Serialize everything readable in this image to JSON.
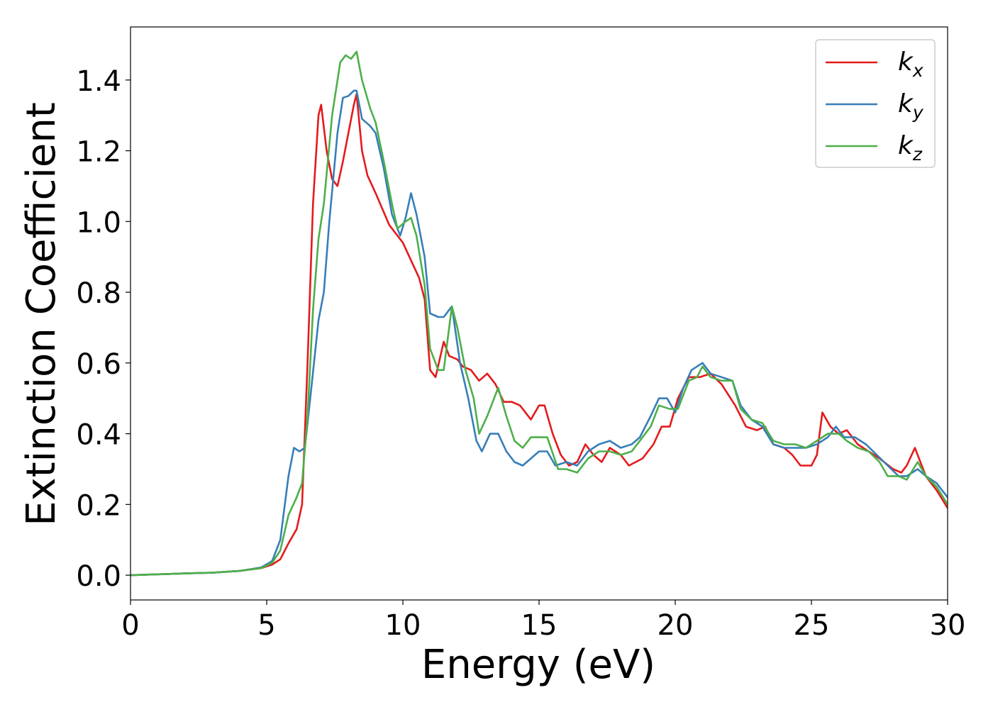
{
  "chart_data": {
    "type": "line",
    "title": "",
    "xlabel": "Energy (eV)",
    "ylabel": "Extinction Coefficient",
    "xlim": [
      0,
      30
    ],
    "ylim": [
      -0.07,
      1.55
    ],
    "xticks": [
      0,
      5,
      10,
      15,
      20,
      25,
      30
    ],
    "xtick_labels": [
      "0",
      "5",
      "10",
      "15",
      "20",
      "25",
      "30"
    ],
    "yticks": [
      0.0,
      0.2,
      0.4,
      0.6,
      0.8,
      1.0,
      1.2,
      1.4
    ],
    "ytick_labels": [
      "0.0",
      "0.2",
      "0.4",
      "0.6",
      "0.8",
      "1.0",
      "1.2",
      "1.4"
    ],
    "grid": false,
    "legend_position": "top-right",
    "series": [
      {
        "name": "k_x",
        "label_base": "k",
        "label_sub": "x",
        "color": "#e41a1c",
        "points": [
          [
            0,
            0
          ],
          [
            2,
            0.005
          ],
          [
            3,
            0.007
          ],
          [
            4,
            0.012
          ],
          [
            4.8,
            0.02
          ],
          [
            5.2,
            0.03
          ],
          [
            5.5,
            0.045
          ],
          [
            5.8,
            0.09
          ],
          [
            6.1,
            0.13
          ],
          [
            6.3,
            0.2
          ],
          [
            6.5,
            0.6
          ],
          [
            6.7,
            1.05
          ],
          [
            6.9,
            1.3
          ],
          [
            7.0,
            1.33
          ],
          [
            7.2,
            1.2
          ],
          [
            7.4,
            1.12
          ],
          [
            7.6,
            1.1
          ],
          [
            7.8,
            1.17
          ],
          [
            8.0,
            1.25
          ],
          [
            8.2,
            1.33
          ],
          [
            8.3,
            1.36
          ],
          [
            8.5,
            1.2
          ],
          [
            8.7,
            1.13
          ],
          [
            9.0,
            1.08
          ],
          [
            9.5,
            0.99
          ],
          [
            10.0,
            0.94
          ],
          [
            10.3,
            0.89
          ],
          [
            10.6,
            0.84
          ],
          [
            10.8,
            0.78
          ],
          [
            11.0,
            0.58
          ],
          [
            11.2,
            0.56
          ],
          [
            11.5,
            0.66
          ],
          [
            11.7,
            0.62
          ],
          [
            12.0,
            0.61
          ],
          [
            12.2,
            0.59
          ],
          [
            12.5,
            0.58
          ],
          [
            12.8,
            0.55
          ],
          [
            13.1,
            0.57
          ],
          [
            13.4,
            0.54
          ],
          [
            13.7,
            0.49
          ],
          [
            14.0,
            0.49
          ],
          [
            14.3,
            0.48
          ],
          [
            14.7,
            0.44
          ],
          [
            15.0,
            0.48
          ],
          [
            15.2,
            0.48
          ],
          [
            15.5,
            0.4
          ],
          [
            15.8,
            0.34
          ],
          [
            16.1,
            0.31
          ],
          [
            16.4,
            0.32
          ],
          [
            16.7,
            0.37
          ],
          [
            17.0,
            0.34
          ],
          [
            17.3,
            0.32
          ],
          [
            17.6,
            0.36
          ],
          [
            18.0,
            0.34
          ],
          [
            18.3,
            0.31
          ],
          [
            18.8,
            0.33
          ],
          [
            19.2,
            0.37
          ],
          [
            19.5,
            0.42
          ],
          [
            19.8,
            0.42
          ],
          [
            20.1,
            0.5
          ],
          [
            20.5,
            0.56
          ],
          [
            20.9,
            0.56
          ],
          [
            21.3,
            0.57
          ],
          [
            21.7,
            0.54
          ],
          [
            22.2,
            0.48
          ],
          [
            22.6,
            0.42
          ],
          [
            23.0,
            0.41
          ],
          [
            23.3,
            0.42
          ],
          [
            23.6,
            0.37
          ],
          [
            24.0,
            0.36
          ],
          [
            24.3,
            0.34
          ],
          [
            24.6,
            0.31
          ],
          [
            25.0,
            0.31
          ],
          [
            25.2,
            0.34
          ],
          [
            25.4,
            0.46
          ],
          [
            25.7,
            0.42
          ],
          [
            26.0,
            0.4
          ],
          [
            26.3,
            0.41
          ],
          [
            26.7,
            0.37
          ],
          [
            27.1,
            0.35
          ],
          [
            27.5,
            0.33
          ],
          [
            28.0,
            0.3
          ],
          [
            28.3,
            0.29
          ],
          [
            28.5,
            0.31
          ],
          [
            28.8,
            0.36
          ],
          [
            29.2,
            0.28
          ],
          [
            29.6,
            0.24
          ],
          [
            30.0,
            0.19
          ]
        ]
      },
      {
        "name": "k_y",
        "label_base": "k",
        "label_sub": "y",
        "color": "#377eb8",
        "points": [
          [
            0,
            0
          ],
          [
            2,
            0.005
          ],
          [
            3,
            0.007
          ],
          [
            4,
            0.012
          ],
          [
            4.8,
            0.022
          ],
          [
            5.2,
            0.04
          ],
          [
            5.5,
            0.1
          ],
          [
            5.8,
            0.28
          ],
          [
            6.0,
            0.36
          ],
          [
            6.2,
            0.35
          ],
          [
            6.4,
            0.36
          ],
          [
            6.6,
            0.5
          ],
          [
            6.9,
            0.72
          ],
          [
            7.1,
            0.8
          ],
          [
            7.3,
            1.0
          ],
          [
            7.6,
            1.25
          ],
          [
            7.8,
            1.35
          ],
          [
            8.0,
            1.355
          ],
          [
            8.2,
            1.37
          ],
          [
            8.3,
            1.37
          ],
          [
            8.5,
            1.29
          ],
          [
            8.8,
            1.27
          ],
          [
            9.0,
            1.25
          ],
          [
            9.3,
            1.15
          ],
          [
            9.6,
            1.02
          ],
          [
            9.9,
            0.96
          ],
          [
            10.1,
            1.01
          ],
          [
            10.3,
            1.08
          ],
          [
            10.5,
            1.02
          ],
          [
            10.8,
            0.9
          ],
          [
            11.0,
            0.74
          ],
          [
            11.3,
            0.73
          ],
          [
            11.5,
            0.73
          ],
          [
            11.8,
            0.76
          ],
          [
            12.1,
            0.6
          ],
          [
            12.4,
            0.5
          ],
          [
            12.7,
            0.38
          ],
          [
            12.9,
            0.35
          ],
          [
            13.2,
            0.4
          ],
          [
            13.5,
            0.4
          ],
          [
            13.8,
            0.35
          ],
          [
            14.1,
            0.32
          ],
          [
            14.4,
            0.31
          ],
          [
            14.7,
            0.33
          ],
          [
            15.0,
            0.35
          ],
          [
            15.3,
            0.35
          ],
          [
            15.6,
            0.31
          ],
          [
            16.0,
            0.32
          ],
          [
            16.4,
            0.31
          ],
          [
            16.8,
            0.35
          ],
          [
            17.2,
            0.37
          ],
          [
            17.6,
            0.38
          ],
          [
            18.0,
            0.36
          ],
          [
            18.4,
            0.37
          ],
          [
            18.7,
            0.39
          ],
          [
            19.1,
            0.45
          ],
          [
            19.4,
            0.5
          ],
          [
            19.7,
            0.5
          ],
          [
            20.0,
            0.46
          ],
          [
            20.3,
            0.53
          ],
          [
            20.6,
            0.58
          ],
          [
            21.0,
            0.6
          ],
          [
            21.3,
            0.57
          ],
          [
            21.7,
            0.56
          ],
          [
            22.1,
            0.55
          ],
          [
            22.4,
            0.48
          ],
          [
            22.8,
            0.44
          ],
          [
            23.2,
            0.42
          ],
          [
            23.6,
            0.37
          ],
          [
            24.0,
            0.36
          ],
          [
            24.4,
            0.36
          ],
          [
            24.8,
            0.36
          ],
          [
            25.2,
            0.37
          ],
          [
            25.6,
            0.39
          ],
          [
            25.9,
            0.42
          ],
          [
            26.2,
            0.39
          ],
          [
            26.6,
            0.39
          ],
          [
            27.0,
            0.37
          ],
          [
            27.4,
            0.34
          ],
          [
            27.8,
            0.31
          ],
          [
            28.2,
            0.28
          ],
          [
            28.5,
            0.28
          ],
          [
            28.9,
            0.3
          ],
          [
            29.2,
            0.28
          ],
          [
            29.6,
            0.26
          ],
          [
            30.0,
            0.22
          ]
        ]
      },
      {
        "name": "k_z",
        "label_base": "k",
        "label_sub": "z",
        "color": "#4daf4a",
        "points": [
          [
            0,
            0
          ],
          [
            2,
            0.005
          ],
          [
            3,
            0.007
          ],
          [
            4,
            0.012
          ],
          [
            4.8,
            0.02
          ],
          [
            5.2,
            0.035
          ],
          [
            5.5,
            0.07
          ],
          [
            5.8,
            0.17
          ],
          [
            6.1,
            0.22
          ],
          [
            6.3,
            0.26
          ],
          [
            6.5,
            0.45
          ],
          [
            6.7,
            0.75
          ],
          [
            6.9,
            0.95
          ],
          [
            7.1,
            1.05
          ],
          [
            7.4,
            1.3
          ],
          [
            7.7,
            1.45
          ],
          [
            7.9,
            1.47
          ],
          [
            8.1,
            1.46
          ],
          [
            8.3,
            1.48
          ],
          [
            8.5,
            1.4
          ],
          [
            8.8,
            1.32
          ],
          [
            9.0,
            1.28
          ],
          [
            9.3,
            1.17
          ],
          [
            9.6,
            1.05
          ],
          [
            9.8,
            0.98
          ],
          [
            10.1,
            1.0
          ],
          [
            10.3,
            1.01
          ],
          [
            10.5,
            0.96
          ],
          [
            10.8,
            0.82
          ],
          [
            11.0,
            0.64
          ],
          [
            11.3,
            0.58
          ],
          [
            11.5,
            0.58
          ],
          [
            11.8,
            0.76
          ],
          [
            12.0,
            0.7
          ],
          [
            12.3,
            0.58
          ],
          [
            12.6,
            0.5
          ],
          [
            12.8,
            0.4
          ],
          [
            13.1,
            0.45
          ],
          [
            13.5,
            0.53
          ],
          [
            13.8,
            0.45
          ],
          [
            14.1,
            0.38
          ],
          [
            14.4,
            0.36
          ],
          [
            14.7,
            0.39
          ],
          [
            15.0,
            0.39
          ],
          [
            15.3,
            0.39
          ],
          [
            15.7,
            0.3
          ],
          [
            16.0,
            0.3
          ],
          [
            16.4,
            0.29
          ],
          [
            16.8,
            0.33
          ],
          [
            17.2,
            0.35
          ],
          [
            17.6,
            0.35
          ],
          [
            18.0,
            0.34
          ],
          [
            18.4,
            0.35
          ],
          [
            18.8,
            0.39
          ],
          [
            19.1,
            0.42
          ],
          [
            19.4,
            0.48
          ],
          [
            19.8,
            0.47
          ],
          [
            20.1,
            0.47
          ],
          [
            20.5,
            0.55
          ],
          [
            20.8,
            0.56
          ],
          [
            21.0,
            0.59
          ],
          [
            21.3,
            0.56
          ],
          [
            21.7,
            0.55
          ],
          [
            22.1,
            0.55
          ],
          [
            22.4,
            0.47
          ],
          [
            22.8,
            0.44
          ],
          [
            23.2,
            0.43
          ],
          [
            23.6,
            0.38
          ],
          [
            24.0,
            0.37
          ],
          [
            24.4,
            0.37
          ],
          [
            24.8,
            0.36
          ],
          [
            25.2,
            0.38
          ],
          [
            25.6,
            0.4
          ],
          [
            26.0,
            0.4
          ],
          [
            26.3,
            0.38
          ],
          [
            26.7,
            0.36
          ],
          [
            27.1,
            0.35
          ],
          [
            27.5,
            0.32
          ],
          [
            27.8,
            0.28
          ],
          [
            28.2,
            0.28
          ],
          [
            28.5,
            0.27
          ],
          [
            28.9,
            0.32
          ],
          [
            29.2,
            0.28
          ],
          [
            29.6,
            0.25
          ],
          [
            30.0,
            0.2
          ]
        ]
      }
    ]
  }
}
